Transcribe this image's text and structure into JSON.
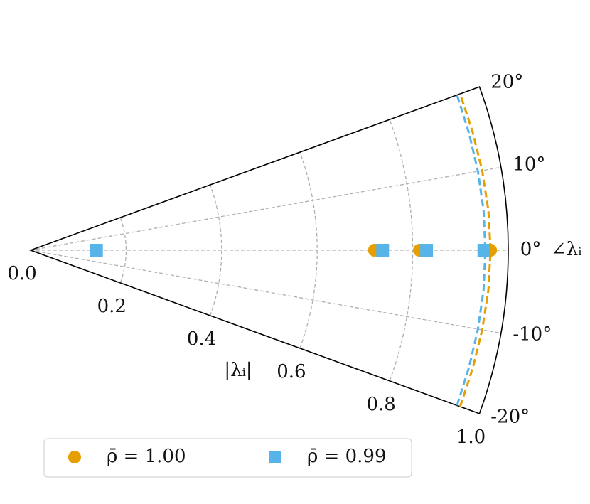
{
  "chart_data": {
    "type": "polar",
    "thetalim": [
      -20,
      20
    ],
    "thetaticks": [
      {
        "value": -20,
        "label": "-20°"
      },
      {
        "value": -10,
        "label": "-10°"
      },
      {
        "value": 0,
        "label": "0°"
      },
      {
        "value": 10,
        "label": "10°"
      },
      {
        "value": 20,
        "label": "20°"
      }
    ],
    "rlim": [
      0,
      1
    ],
    "rticks": [
      {
        "value": 0,
        "label": "0.0"
      },
      0.2,
      0.4,
      0.6,
      0.8,
      {
        "value": 1,
        "label": "1.0"
      }
    ],
    "rlabel": "|λᵢ|",
    "thetalabel": "∠λᵢ",
    "grid": true,
    "legend": "lower left",
    "series": [
      {
        "name": "ρ̄ = 1.00",
        "color": "#e69f00",
        "marker": "circle",
        "theta": [
          0,
          0,
          0
        ],
        "r": [
          0.72,
          0.814,
          0.963
        ]
      },
      {
        "name": "ρ̄ = 0.99",
        "color": "#56b4e9",
        "marker": "square",
        "theta": [
          0,
          0,
          0,
          0
        ],
        "r": [
          0.138,
          0.737,
          0.829,
          0.949
        ]
      }
    ],
    "curves": [
      {
        "color": "#e69f00",
        "theta": [
          -20,
          -15,
          -10,
          -5,
          0,
          5,
          10,
          15,
          20
        ],
        "r": [
          0.957,
          0.958,
          0.96,
          0.962,
          0.963,
          0.962,
          0.96,
          0.958,
          0.957
        ]
      },
      {
        "color": "#56b4e9",
        "theta": [
          -20,
          -15,
          -10,
          -5,
          0,
          5,
          10,
          15,
          20
        ],
        "r": [
          0.95,
          0.95,
          0.951,
          0.952,
          0.952,
          0.952,
          0.951,
          0.95,
          0.95
        ]
      }
    ]
  }
}
